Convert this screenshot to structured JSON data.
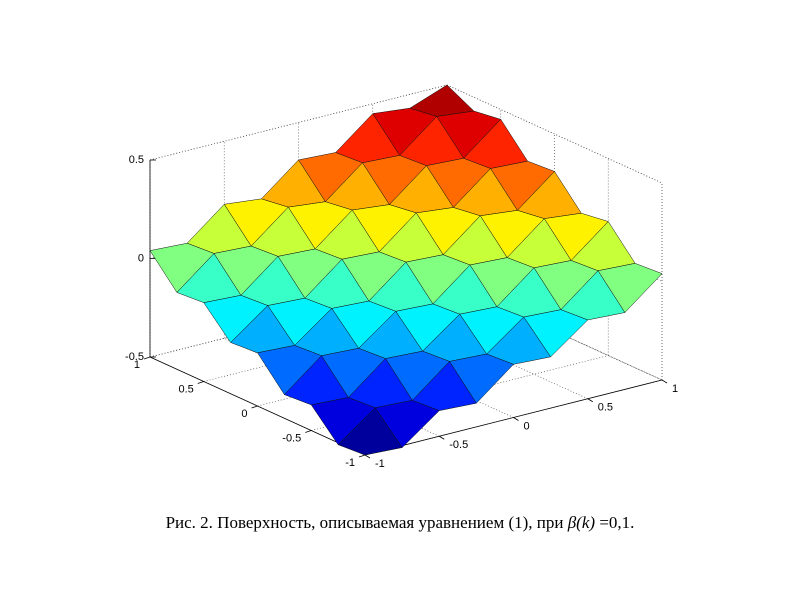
{
  "chart_data": {
    "type": "surface",
    "x": [
      -1,
      -0.75,
      -0.5,
      -0.25,
      0,
      0.25,
      0.5,
      0.75,
      1
    ],
    "y": [
      -1,
      -0.75,
      -0.5,
      -0.25,
      0,
      0.25,
      0.5,
      0.75,
      1
    ],
    "z": [
      [
        -0.5,
        -0.51,
        -0.37,
        -0.38,
        -0.23,
        -0.24,
        -0.1,
        -0.11,
        0.04
      ],
      [
        -0.51,
        -0.37,
        -0.38,
        -0.23,
        -0.24,
        -0.1,
        -0.11,
        0.04,
        0.03
      ],
      [
        -0.37,
        -0.38,
        -0.23,
        -0.24,
        -0.1,
        -0.11,
        0.04,
        0.03,
        0.18
      ],
      [
        -0.38,
        -0.23,
        -0.24,
        -0.1,
        -0.11,
        0.04,
        0.03,
        0.18,
        0.16
      ],
      [
        -0.23,
        -0.24,
        -0.1,
        -0.11,
        0.04,
        0.03,
        0.18,
        0.16,
        0.31
      ],
      [
        -0.24,
        -0.1,
        -0.11,
        0.04,
        0.03,
        0.18,
        0.16,
        0.31,
        0.3
      ],
      [
        -0.1,
        -0.11,
        0.04,
        0.03,
        0.18,
        0.16,
        0.31,
        0.3,
        0.45
      ],
      [
        -0.11,
        0.04,
        0.03,
        0.18,
        0.16,
        0.31,
        0.3,
        0.45,
        0.43
      ],
      [
        0.04,
        0.03,
        0.18,
        0.16,
        0.31,
        0.3,
        0.45,
        0.43,
        0.5
      ]
    ],
    "xlim": [
      -1,
      1
    ],
    "ylim": [
      -1,
      1
    ],
    "zlim": [
      -0.5,
      0.5
    ],
    "xticks": [
      -1,
      -0.5,
      0,
      0.5,
      1
    ],
    "yticks": [
      -1,
      -0.5,
      0,
      0.5,
      1
    ],
    "zticks": [
      -0.5,
      0,
      0.5
    ],
    "colormap": "jet",
    "grid": true
  },
  "caption": {
    "text": "Рис. 2. Поверхность, описываемая уравнением (1), при",
    "symbol": "β(k)",
    "value": "=0,1."
  }
}
